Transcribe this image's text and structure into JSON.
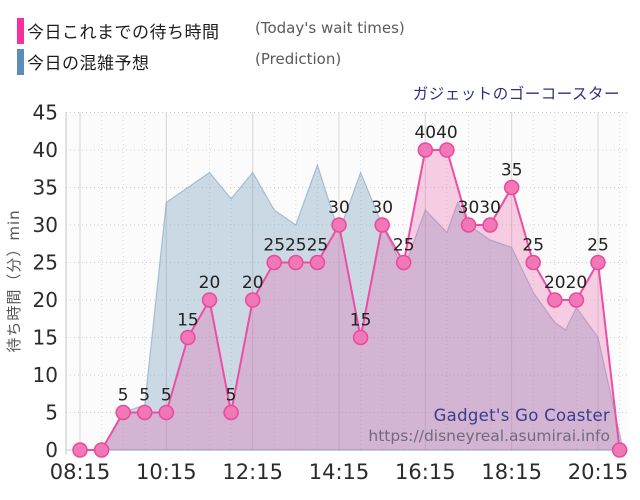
{
  "title": "ガジェットのゴーコースター",
  "legend": {
    "today": {
      "label": "今日これまでの待ち時間",
      "sublabel": "(Today's wait times)",
      "color": "#f5319d"
    },
    "prediction": {
      "label": "今日の混雑予想",
      "sublabel": "(Prediction)",
      "color": "#5b8cba"
    }
  },
  "watermark": {
    "line1": "Gadget's Go Coaster",
    "line2": "https://disneyreal.asumirai.info"
  },
  "chart_data": {
    "type": "area",
    "title": "ガジェットのゴーコースター",
    "xlabel": "",
    "ylabel": "待ち時間（分）min",
    "ylim": [
      0,
      45
    ],
    "y_tick_step": 5,
    "y_ticks": [
      0,
      5,
      10,
      15,
      20,
      25,
      30,
      35,
      40,
      45
    ],
    "x_ticks": [
      "08:15",
      "10:15",
      "12:15",
      "14:15",
      "16:15",
      "18:15",
      "20:15"
    ],
    "x_range": [
      "08:15",
      "21:00"
    ],
    "grid": "dotted, vertical every 30 min, horizontal every 5 min-units",
    "legend_position": "top-left above plot",
    "series": [
      {
        "name": "今日これまでの待ち時間",
        "name_en": "(Today's wait times)",
        "color": "#f5319d",
        "line_color": "#ec4fa2",
        "marker": "circle",
        "labels_on_points": true,
        "points": [
          [
            "08:15",
            0
          ],
          [
            "08:45",
            0
          ],
          [
            "09:15",
            5
          ],
          [
            "09:45",
            5
          ],
          [
            "10:15",
            5
          ],
          [
            "10:45",
            15
          ],
          [
            "11:15",
            20
          ],
          [
            "11:45",
            5
          ],
          [
            "12:15",
            20
          ],
          [
            "12:45",
            25
          ],
          [
            "13:15",
            25
          ],
          [
            "13:45",
            25
          ],
          [
            "14:15",
            30
          ],
          [
            "14:45",
            15
          ],
          [
            "15:15",
            30
          ],
          [
            "15:45",
            25
          ],
          [
            "16:15",
            40
          ],
          [
            "16:45",
            40
          ],
          [
            "17:15",
            30
          ],
          [
            "17:45",
            30
          ],
          [
            "18:15",
            35
          ],
          [
            "18:45",
            25
          ],
          [
            "19:15",
            20
          ],
          [
            "19:45",
            20
          ],
          [
            "20:15",
            25
          ],
          [
            "20:45",
            0
          ]
        ]
      },
      {
        "name": "今日の混雑予想",
        "name_en": "(Prediction)",
        "color": "#5b8cba",
        "marker": "none",
        "labels_on_points": false,
        "points": [
          [
            "08:15",
            0
          ],
          [
            "08:45",
            0
          ],
          [
            "09:15",
            5
          ],
          [
            "09:45",
            6
          ],
          [
            "10:15",
            33
          ],
          [
            "10:45",
            35
          ],
          [
            "11:15",
            37
          ],
          [
            "11:45",
            33.5
          ],
          [
            "12:15",
            37
          ],
          [
            "12:45",
            32
          ],
          [
            "13:15",
            30
          ],
          [
            "13:45",
            38
          ],
          [
            "14:15",
            29
          ],
          [
            "14:45",
            37
          ],
          [
            "15:15",
            30
          ],
          [
            "15:45",
            24
          ],
          [
            "16:15",
            32
          ],
          [
            "16:45",
            29
          ],
          [
            "17:00",
            33
          ],
          [
            "17:15",
            30
          ],
          [
            "17:45",
            28
          ],
          [
            "18:15",
            27
          ],
          [
            "18:45",
            21
          ],
          [
            "19:15",
            17
          ],
          [
            "19:30",
            16
          ],
          [
            "19:45",
            19
          ],
          [
            "20:15",
            15
          ],
          [
            "20:50",
            0
          ]
        ]
      }
    ]
  }
}
